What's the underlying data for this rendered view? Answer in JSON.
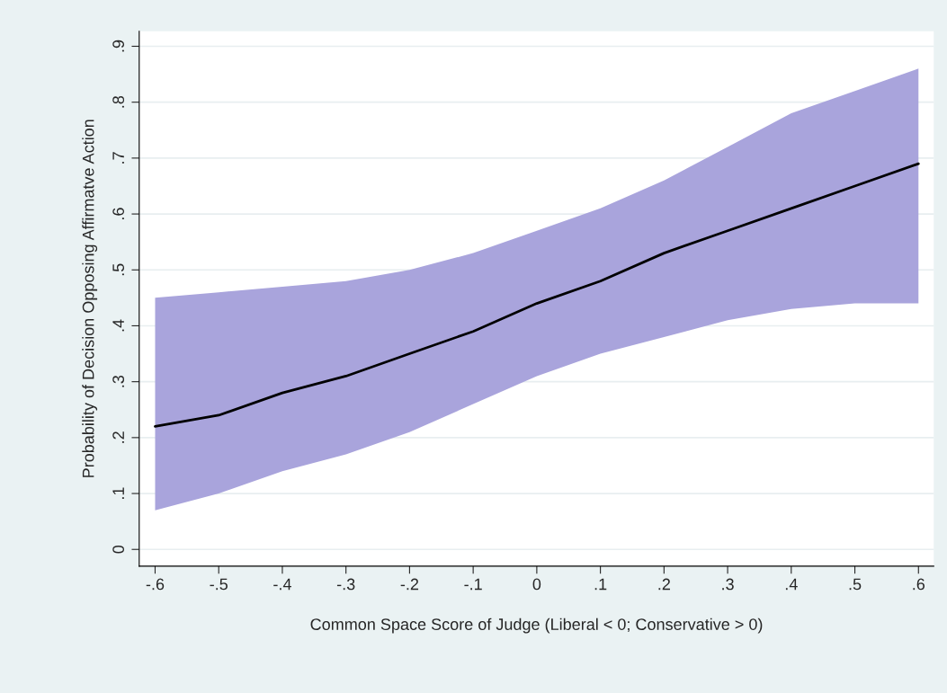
{
  "chart_data": {
    "type": "line",
    "xlabel": "Common Space Score of Judge (Liberal < 0; Conservative > 0)",
    "ylabel": "Probability of Decision Opposing Affirmatve Action",
    "series": [
      {
        "color": "#000000",
        "x": [
          -0.6,
          -0.5,
          -0.4,
          -0.3,
          -0.2,
          -0.1,
          0,
          0.1,
          0.2,
          0.3,
          0.4,
          0.5,
          0.6
        ],
        "values": [
          0.22,
          0.24,
          0.28,
          0.31,
          0.35,
          0.39,
          0.44,
          0.48,
          0.53,
          0.57,
          0.61,
          0.65,
          0.69
        ],
        "lower": [
          0.07,
          0.1,
          0.14,
          0.17,
          0.21,
          0.26,
          0.31,
          0.35,
          0.38,
          0.41,
          0.43,
          0.44,
          0.44
        ],
        "upper": [
          0.45,
          0.46,
          0.47,
          0.48,
          0.5,
          0.53,
          0.57,
          0.61,
          0.66,
          0.72,
          0.78,
          0.82,
          0.86
        ]
      }
    ],
    "xlim": [
      -0.625,
      0.624
    ],
    "ylim": [
      -0.03,
      0.927
    ],
    "xticks": [
      {
        "value": -0.6,
        "label": "-.6"
      },
      {
        "value": -0.5,
        "label": "-.5"
      },
      {
        "value": -0.4,
        "label": "-.4"
      },
      {
        "value": -0.3,
        "label": "-.3"
      },
      {
        "value": -0.2,
        "label": "-.2"
      },
      {
        "value": -0.1,
        "label": "-.1"
      },
      0,
      {
        "value": 0.1,
        "label": ".1"
      },
      {
        "value": 0.2,
        "label": ".2"
      },
      {
        "value": 0.3,
        "label": ".3"
      },
      {
        "value": 0.4,
        "label": ".4"
      },
      {
        "value": 0.5,
        "label": ".5"
      },
      {
        "value": 0.6,
        "label": ".6"
      }
    ],
    "yticks": [
      0,
      {
        "value": 0.1,
        "label": ".1"
      },
      {
        "value": 0.2,
        "label": ".2"
      },
      {
        "value": 0.3,
        "label": ".3"
      },
      {
        "value": 0.4,
        "label": ".4"
      },
      {
        "value": 0.5,
        "label": ".5"
      },
      {
        "value": 0.6,
        "label": ".6"
      },
      {
        "value": 0.7,
        "label": ".7"
      },
      {
        "value": 0.8,
        "label": ".8"
      },
      {
        "value": 0.9,
        "label": ".9"
      }
    ],
    "grid": "y",
    "marker": "none",
    "line_style": "solid"
  }
}
